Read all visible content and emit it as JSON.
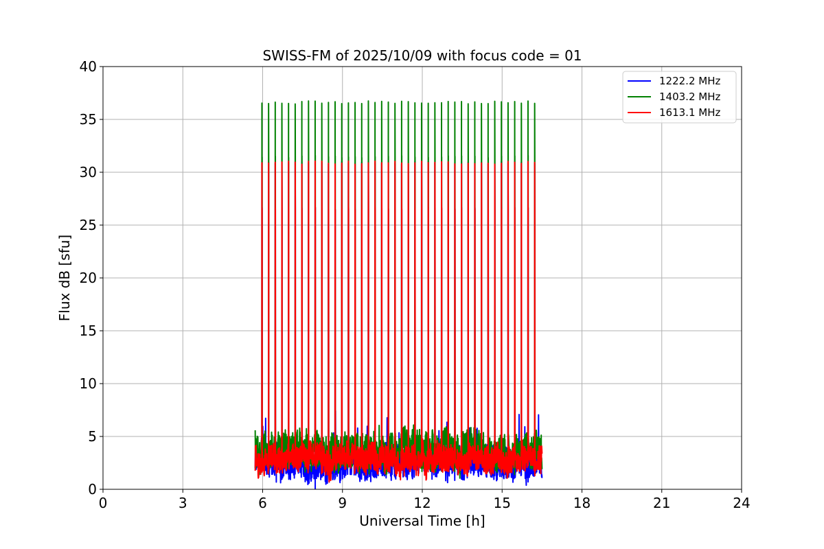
{
  "chart_data": {
    "type": "line",
    "title": "SWISS-FM of 2025/10/09 with focus code = 01",
    "xlabel": "Universal Time [h]",
    "ylabel": "Flux dB [sfu]",
    "xlim": [
      0,
      24
    ],
    "ylim": [
      0,
      40
    ],
    "xticks": [
      "0",
      "3",
      "6",
      "9",
      "12",
      "15",
      "18",
      "21",
      "24"
    ],
    "yticks": [
      "0",
      "5",
      "10",
      "15",
      "20",
      "25",
      "30",
      "35",
      "40"
    ],
    "grid": true,
    "legend_position": "top-right",
    "data_range_hours": [
      5.72,
      16.5
    ],
    "calibration_burst_interval_hours": 0.25,
    "series": [
      {
        "name": "1222.2 MHz",
        "color": "#0000ff",
        "baseline_db": 2.5,
        "baseline_noise_db": 1.5,
        "burst_peak_db": 30.9
      },
      {
        "name": "1403.2 MHz",
        "color": "#008000",
        "baseline_db": 3.8,
        "baseline_noise_db": 1.6,
        "burst_peak_db": 36.6
      },
      {
        "name": "1613.1 MHz",
        "color": "#ff0000",
        "baseline_db": 2.8,
        "baseline_noise_db": 1.2,
        "burst_peak_db": 30.9
      }
    ]
  }
}
